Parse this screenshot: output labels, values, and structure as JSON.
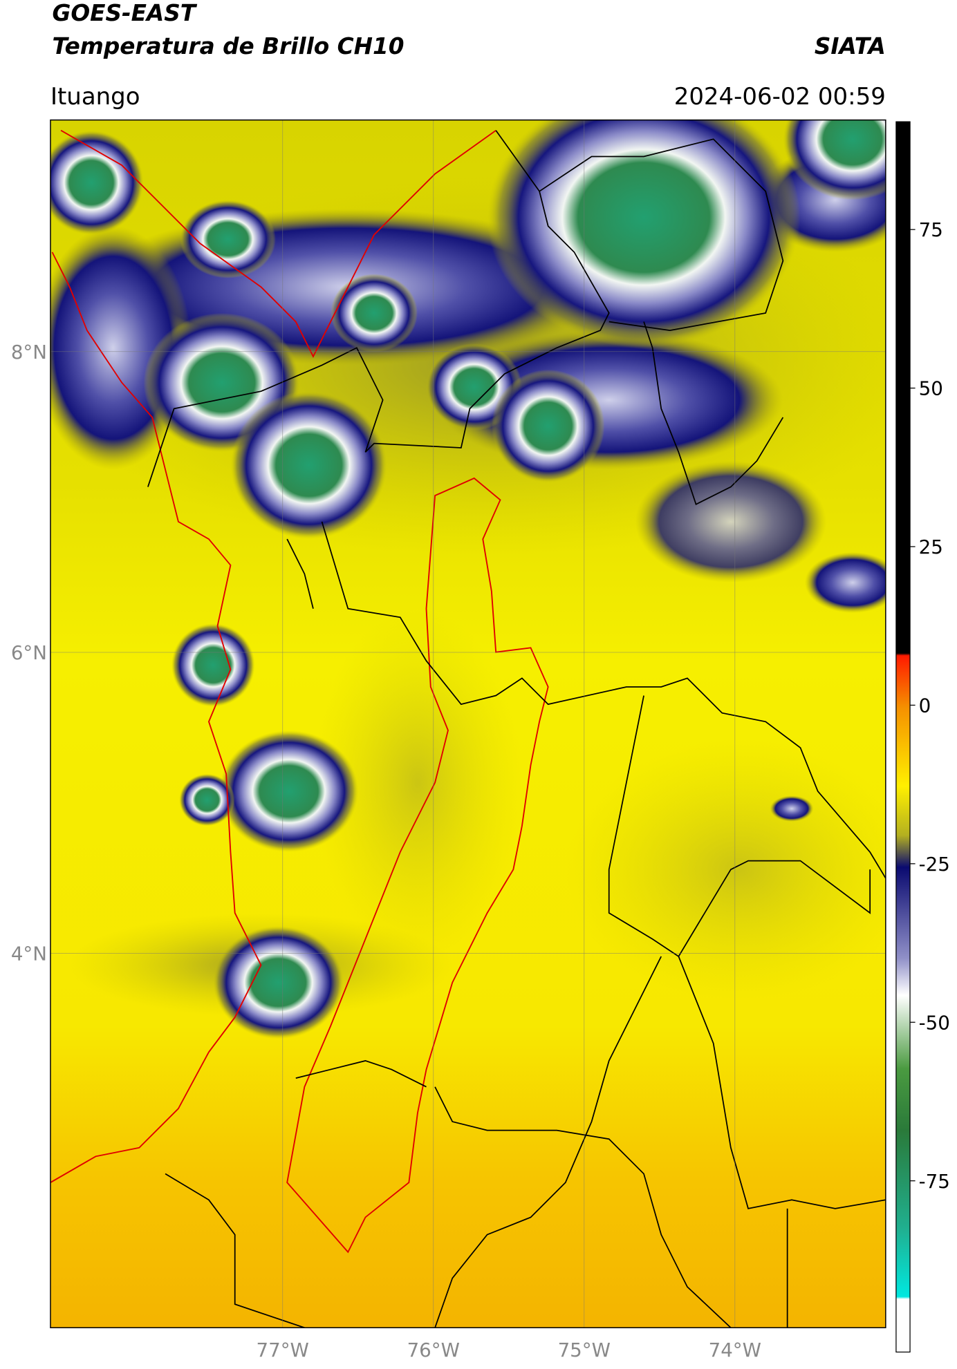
{
  "header": {
    "satellite": "GOES-EAST",
    "product": "Temperatura de Brillo CH10",
    "source": "SIATA",
    "region": "Ituango",
    "datetime": "2024-06-02 00:59"
  },
  "map": {
    "lon_range": [
      -78.54,
      -73.0
    ],
    "lat_range": [
      1.51,
      9.54
    ],
    "lon_ticks": [
      {
        "value": -77,
        "label": "77°W"
      },
      {
        "value": -76,
        "label": "76°W"
      },
      {
        "value": -75,
        "label": "75°W"
      },
      {
        "value": -74,
        "label": "74°W"
      }
    ],
    "lat_ticks": [
      {
        "value": 8,
        "label": "8°N"
      },
      {
        "value": 6,
        "label": "6°N"
      },
      {
        "value": 4,
        "label": "4°N"
      }
    ],
    "colorbar": {
      "range": [
        -102,
        92
      ],
      "ticks": [
        75,
        50,
        25,
        0,
        -25,
        -50,
        -75
      ]
    }
  }
}
